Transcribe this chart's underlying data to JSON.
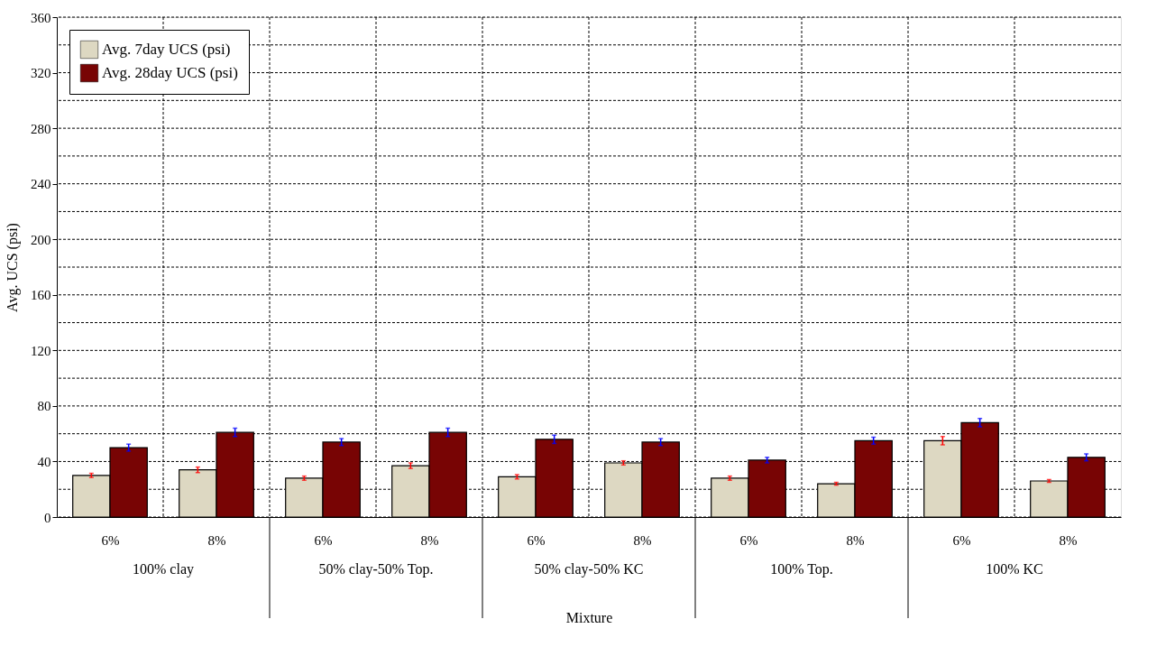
{
  "chart_data": {
    "type": "bar",
    "categories": [
      "6%",
      "8%",
      "6%",
      "8%",
      "6%",
      "8%",
      "6%",
      "8%",
      "6%",
      "8%"
    ],
    "series": [
      {
        "name": "Avg. 7day UCS (psi)",
        "color": "#ddd8c2",
        "values": [
          30,
          34,
          28,
          37,
          29,
          39,
          28,
          24,
          55,
          26
        ],
        "errors": [
          1.5,
          2,
          1.5,
          2,
          1.5,
          1.5,
          1.5,
          1,
          3,
          1
        ]
      },
      {
        "name": "Avg. 28day UCS (psi)",
        "color": "#780404",
        "values": [
          50,
          61,
          54,
          61,
          56,
          54,
          41,
          55,
          68,
          43
        ],
        "errors": [
          2.5,
          3,
          2.5,
          3,
          3,
          2.5,
          2,
          2.5,
          3,
          2.5
        ]
      }
    ],
    "xlabel": "Mixture",
    "ylabel": "Avg. UCS (psi)",
    "ylim": [
      0,
      360
    ],
    "yticks": [
      0,
      {
        "value": 20,
        "label": null
      },
      40,
      {
        "value": 60,
        "label": null
      },
      80,
      {
        "value": 100,
        "label": null
      },
      120,
      {
        "value": 140,
        "label": null
      },
      160,
      {
        "value": 180,
        "label": null
      },
      200,
      {
        "value": 220,
        "label": null
      },
      240,
      {
        "value": 260,
        "label": null
      },
      280,
      {
        "value": 300,
        "label": null
      },
      320,
      {
        "value": 340,
        "label": null
      },
      360
    ],
    "annotations": [
      "100% clay",
      "50% clay-50% Top.",
      "50% clay-50% KC",
      "100% Top.",
      "100% KC"
    ],
    "grid": true,
    "legend": "top left"
  }
}
